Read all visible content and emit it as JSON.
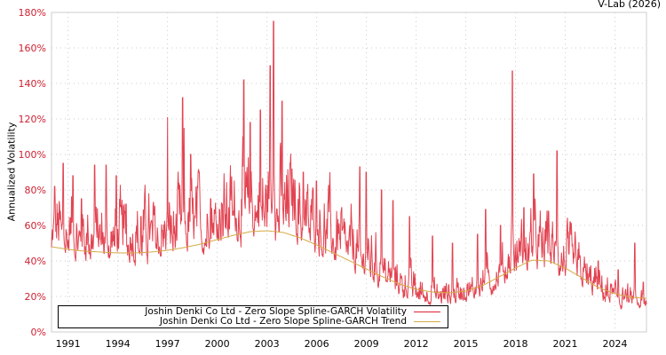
{
  "credit": "V-Lab (2026)",
  "legend": {
    "items": [
      {
        "label": "Joshin Denki Co Ltd - Zero Slope Spline-GARCH Volatility",
        "color": "#dd2233"
      },
      {
        "label": "Joshin Denki Co Ltd - Zero Slope Spline-GARCH Trend",
        "color": "#d4aa44"
      }
    ]
  },
  "chart_data": {
    "type": "line",
    "title": "",
    "xlabel": "",
    "ylabel": "Annualized Volatility",
    "ylim": [
      0,
      180
    ],
    "xlim": [
      1990.0,
      2025.9
    ],
    "y_ticks": [
      "0%",
      "20%",
      "40%",
      "60%",
      "80%",
      "100%",
      "120%",
      "140%",
      "160%",
      "180%"
    ],
    "x_ticks": [
      "1991",
      "1994",
      "1997",
      "2000",
      "2003",
      "2006",
      "2009",
      "2012",
      "2015",
      "2018",
      "2021",
      "2024"
    ],
    "x_tick_years": [
      1991,
      1994,
      1997,
      2000,
      2003,
      2006,
      2009,
      2012,
      2015,
      2018,
      2021,
      2024
    ],
    "grid": true,
    "legend_position": "bottom-left inside",
    "series": [
      {
        "name": "Joshin Denki Co Ltd - Zero Slope Spline-GARCH Trend",
        "color": "#d4aa44",
        "x": [
          1990.0,
          1991.0,
          1992.0,
          1993.0,
          1994.0,
          1995.0,
          1996.0,
          1997.0,
          1998.0,
          1999.0,
          2000.0,
          2001.0,
          2002.0,
          2003.0,
          2004.0,
          2005.0,
          2006.0,
          2007.0,
          2008.0,
          2009.0,
          2010.0,
          2011.0,
          2012.0,
          2013.0,
          2014.0,
          2015.0,
          2016.0,
          2017.0,
          2018.0,
          2019.0,
          2020.0,
          2021.0,
          2022.0,
          2023.0,
          2024.0,
          2025.0,
          2025.9
        ],
        "values": [
          48,
          46.5,
          45.5,
          45,
          44.5,
          44.5,
          45,
          46,
          47.5,
          49.5,
          52,
          54.5,
          56.5,
          57,
          56,
          53,
          49,
          44.5,
          40,
          35.5,
          31,
          27,
          24,
          22.5,
          22,
          23,
          26,
          31,
          36,
          40.5,
          40,
          36,
          30.5,
          25,
          21.5,
          19.5,
          19
        ]
      },
      {
        "name": "Joshin Denki Co Ltd - Zero Slope Spline-GARCH Volatility",
        "color": "#dd2233",
        "baseline_offset": -8,
        "noise_amplitude": 12,
        "peaks": [
          {
            "x": 1990.2,
            "y": 82
          },
          {
            "x": 1990.7,
            "y": 95
          },
          {
            "x": 1991.3,
            "y": 88
          },
          {
            "x": 1991.8,
            "y": 75
          },
          {
            "x": 1992.6,
            "y": 94
          },
          {
            "x": 1993.3,
            "y": 94
          },
          {
            "x": 1993.9,
            "y": 88
          },
          {
            "x": 1994.5,
            "y": 72
          },
          {
            "x": 1995.4,
            "y": 65
          },
          {
            "x": 1996.2,
            "y": 66
          },
          {
            "x": 1997.0,
            "y": 121
          },
          {
            "x": 1997.9,
            "y": 132
          },
          {
            "x": 1998.0,
            "y": 115
          },
          {
            "x": 1998.4,
            "y": 100
          },
          {
            "x": 1998.9,
            "y": 90
          },
          {
            "x": 1999.6,
            "y": 75
          },
          {
            "x": 2000.3,
            "y": 72
          },
          {
            "x": 2001.6,
            "y": 142
          },
          {
            "x": 2002.0,
            "y": 118
          },
          {
            "x": 2002.6,
            "y": 125
          },
          {
            "x": 2003.2,
            "y": 150
          },
          {
            "x": 2003.4,
            "y": 175
          },
          {
            "x": 2003.9,
            "y": 130
          },
          {
            "x": 2004.4,
            "y": 95
          },
          {
            "x": 2005.2,
            "y": 90
          },
          {
            "x": 2006.0,
            "y": 85
          },
          {
            "x": 2006.7,
            "y": 75
          },
          {
            "x": 2008.6,
            "y": 93
          },
          {
            "x": 2009.0,
            "y": 90
          },
          {
            "x": 2009.9,
            "y": 80
          },
          {
            "x": 2010.6,
            "y": 74
          },
          {
            "x": 2011.6,
            "y": 65
          },
          {
            "x": 2013.0,
            "y": 54
          },
          {
            "x": 2014.2,
            "y": 50
          },
          {
            "x": 2015.7,
            "y": 55
          },
          {
            "x": 2016.2,
            "y": 69
          },
          {
            "x": 2017.1,
            "y": 60
          },
          {
            "x": 2017.8,
            "y": 147
          },
          {
            "x": 2018.5,
            "y": 70
          },
          {
            "x": 2019.1,
            "y": 89
          },
          {
            "x": 2020.0,
            "y": 68
          },
          {
            "x": 2020.5,
            "y": 102
          },
          {
            "x": 2021.3,
            "y": 62
          },
          {
            "x": 2022.2,
            "y": 36
          },
          {
            "x": 2023.0,
            "y": 40
          },
          {
            "x": 2024.2,
            "y": 35
          },
          {
            "x": 2025.2,
            "y": 50
          },
          {
            "x": 2025.7,
            "y": 28
          }
        ]
      }
    ]
  }
}
